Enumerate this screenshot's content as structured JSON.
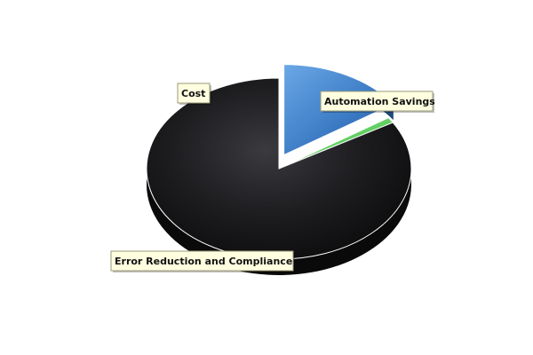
{
  "chart_data": {
    "type": "pie",
    "title": "",
    "is_3d": true,
    "categories": [
      "Automation Savings",
      "Cost",
      "Error Reduction and Compliance"
    ],
    "values": [
      15.5,
      1.0,
      83.5
    ],
    "colors": [
      "#3a78c3",
      "#5ed35e",
      "#1d1d20"
    ],
    "exploded": [
      "Automation Savings"
    ],
    "label_style": "callout-box",
    "label_box_color": "#ffffe0"
  }
}
